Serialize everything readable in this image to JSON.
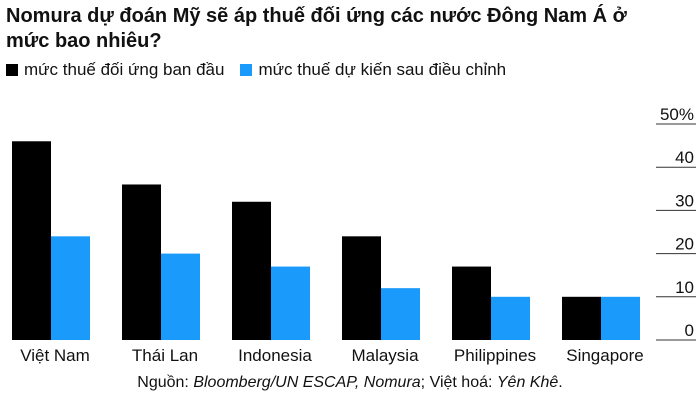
{
  "chart_data": {
    "type": "bar",
    "title": "Nomura dự đoán Mỹ sẽ áp thuế đối ứng các nước Đông Nam Á ở mức bao nhiêu?",
    "categories": [
      "Việt Nam",
      "Thái Lan",
      "Indonesia",
      "Malaysia",
      "Philippines",
      "Singapore"
    ],
    "series": [
      {
        "name": "mức thuế đối ứng ban đầu",
        "color": "#000000",
        "values": [
          46,
          36,
          32,
          24,
          17,
          10
        ]
      },
      {
        "name": "mức thuế dự kiến sau điều chỉnh",
        "color": "#1a9bfc",
        "values": [
          24,
          20,
          17,
          12,
          10,
          10
        ]
      }
    ],
    "ylim": [
      0,
      50
    ],
    "yticks": [
      0,
      10,
      20,
      30,
      40,
      {
        "value": 50,
        "label": "50%"
      }
    ],
    "source": [
      "Nguồn: ",
      "Bloomberg/UN ESCAP, Nomura",
      "; Việt hoá: ",
      "Yên Khê",
      "."
    ]
  }
}
